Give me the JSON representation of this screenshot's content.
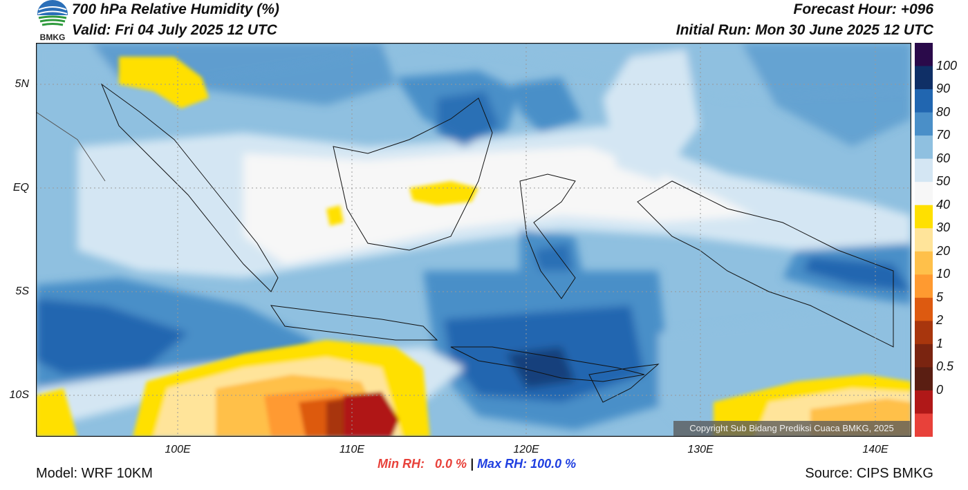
{
  "header": {
    "title": "700 hPa Relative Humidity (%)",
    "valid": "Valid: Fri 04 July 2025 12 UTC",
    "forecast_hour": "Forecast Hour: +096",
    "initial_run": "Initial Run: Mon 30 June 2025 12 UTC"
  },
  "logo": {
    "text": "BMKG"
  },
  "map": {
    "lat_labels": [
      "5N",
      "EQ",
      "5S",
      "10S"
    ],
    "lon_labels": [
      "100E",
      "110E",
      "120E",
      "130E",
      "140E"
    ],
    "copyright": "Copyright Sub Bidang Prediksi Cuaca BMKG, 2025"
  },
  "colorbar": {
    "labels": [
      "100",
      "90",
      "80",
      "70",
      "60",
      "50",
      "40",
      "30",
      "20",
      "10",
      "5",
      "2",
      "1",
      "0.5",
      "0"
    ],
    "colors": [
      "#2a0a4a",
      "#0f2f66",
      "#2166b0",
      "#4a8fc8",
      "#8fc0e0",
      "#d4e6f3",
      "#f7f7f7",
      "#ffe000",
      "#ffe49a",
      "#ffc04a",
      "#ff9a30",
      "#dd5a10",
      "#a8360d",
      "#7a2410",
      "#5a1e12",
      "#b01818",
      "#e8413a"
    ]
  },
  "stats": {
    "min_label": "Min RH:   0.0 %",
    "separator": " | ",
    "max_label": "Max RH: 100.0 %"
  },
  "footer": {
    "model": "Model: WRF 10KM",
    "source": "Source: CIPS BMKG"
  }
}
